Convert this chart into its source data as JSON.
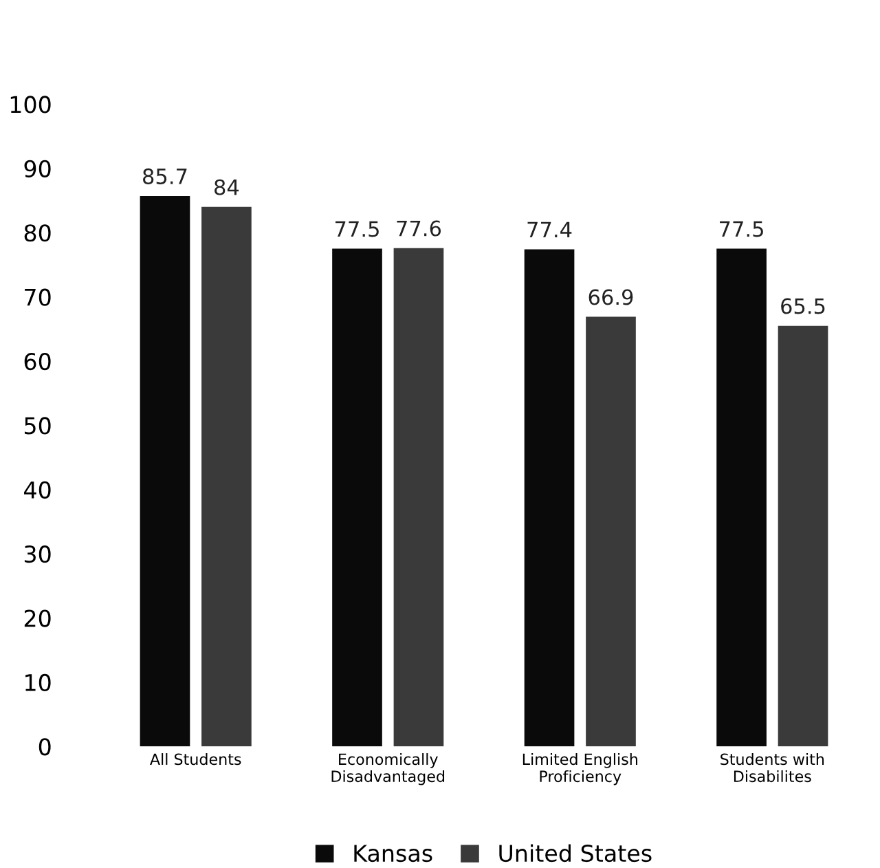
{
  "chart_data": {
    "type": "bar",
    "categories": [
      "All Students",
      "Economically\nDisadvantaged",
      "Limited English\nProficiency",
      "Students with\nDisabilites"
    ],
    "series": [
      {
        "name": "Kansas",
        "color": "#0a0a0a",
        "values": [
          85.7,
          77.5,
          77.4,
          77.5
        ]
      },
      {
        "name": "United States",
        "color": "#3a3a3a",
        "values": [
          84,
          77.6,
          66.9,
          65.5
        ]
      }
    ],
    "ylim": [
      0,
      100
    ],
    "yticks": [
      0,
      10,
      20,
      30,
      40,
      50,
      60,
      70,
      80,
      90,
      100
    ],
    "data_labels": true,
    "legend": "bottom",
    "grid": false
  }
}
